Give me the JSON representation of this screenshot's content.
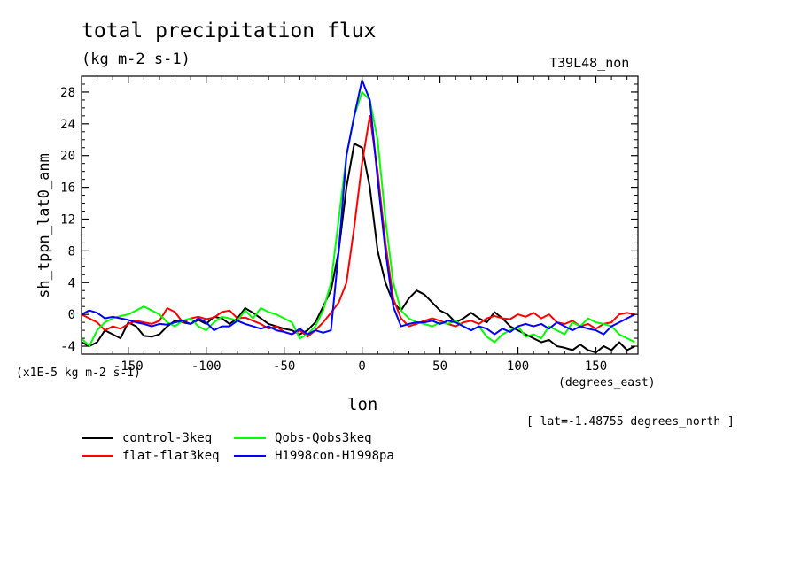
{
  "chart_data": {
    "type": "line",
    "title": "total precipitation flux",
    "subtitle": "(kg m-2 s-1)",
    "run_name": "T39L48_non",
    "xlabel": "lon",
    "x_units_label": "(degrees_east)",
    "ylabel": "sh_tppn_lat0_anm",
    "y_units_label": "(x1E-5 kg m-2 s-1)",
    "annotation": "[ lat=-1.48755 degrees_north ]",
    "xlim": [
      -180,
      177
    ],
    "ylim": [
      -5,
      30
    ],
    "x_ticks": [
      -150,
      -100,
      -50,
      0,
      50,
      100,
      150
    ],
    "x_tick_labels": [
      "-150",
      "-100",
      "-50",
      "0",
      "50",
      "100",
      "150"
    ],
    "y_ticks": [
      -4,
      0,
      4,
      8,
      12,
      16,
      20,
      24,
      28
    ],
    "y_tick_labels": [
      "-4",
      "0",
      "4",
      "8",
      "12",
      "16",
      "20",
      "24",
      "28"
    ],
    "grid": false,
    "legend_position": "bottom-left",
    "x": [
      -180,
      -175,
      -170,
      -165,
      -160,
      -155,
      -150,
      -145,
      -140,
      -135,
      -130,
      -125,
      -120,
      -115,
      -110,
      -105,
      -100,
      -95,
      -90,
      -85,
      -80,
      -75,
      -70,
      -65,
      -60,
      -55,
      -50,
      -45,
      -40,
      -35,
      -30,
      -25,
      -20,
      -15,
      -10,
      -5,
      0,
      5,
      10,
      15,
      20,
      25,
      30,
      35,
      40,
      45,
      50,
      55,
      60,
      65,
      70,
      75,
      80,
      85,
      90,
      95,
      100,
      105,
      110,
      115,
      120,
      125,
      130,
      135,
      140,
      145,
      150,
      155,
      160,
      165,
      170,
      175
    ],
    "series": [
      {
        "name": "control-3keq",
        "color": "#000000",
        "values": [
          -3.5,
          -4,
          -3.5,
          -2,
          -2.5,
          -3,
          -1,
          -1.5,
          -2.7,
          -2.8,
          -2.5,
          -1.5,
          -0.8,
          -1,
          -1.2,
          -0.7,
          -1.2,
          -0.3,
          -0.5,
          -1.2,
          -0.5,
          0.8,
          0.2,
          -0.5,
          -1.2,
          -1.5,
          -1.8,
          -2,
          -2.5,
          -2,
          -1,
          1,
          3,
          8,
          16,
          21.5,
          21,
          16,
          8,
          4,
          1.5,
          0.5,
          2,
          3,
          2.5,
          1.5,
          0.5,
          0,
          -1,
          -0.5,
          0.2,
          -0.5,
          -1,
          0.3,
          -0.5,
          -1.5,
          -2,
          -2.5,
          -3,
          -3.5,
          -3.2,
          -4,
          -4.2,
          -4.5,
          -3.8,
          -4.5,
          -4.8,
          -4,
          -4.5,
          -3.5,
          -4.5,
          -4
        ]
      },
      {
        "name": "flat-flat3keq",
        "color": "#ff0000",
        "values": [
          0,
          -0.5,
          -1,
          -2,
          -1.5,
          -1.8,
          -1.2,
          -0.8,
          -1,
          -1.2,
          -0.8,
          0.8,
          0.3,
          -1,
          -0.5,
          -0.3,
          -0.6,
          -0.4,
          0.3,
          0.5,
          -0.5,
          -0.4,
          -0.8,
          -1.2,
          -1.8,
          -1.5,
          -2.2,
          -2.5,
          -2,
          -2.8,
          -2,
          -1,
          0.2,
          1.5,
          4,
          11,
          19,
          25,
          18,
          9,
          2,
          -0.5,
          -1.5,
          -1.2,
          -0.8,
          -0.5,
          -0.8,
          -1.2,
          -1.5,
          -1,
          -0.8,
          -1.2,
          -0.5,
          -0.2,
          -0.5,
          -0.6,
          0,
          -0.3,
          0.2,
          -0.5,
          0,
          -1,
          -1.2,
          -0.8,
          -1.5,
          -1.2,
          -1.8,
          -1.2,
          -1,
          0,
          0.2,
          0
        ]
      },
      {
        "name": "Qobs-Qobs3keq",
        "color": "#00ff00",
        "values": [
          -3,
          -4,
          -2,
          -1,
          -0.5,
          -0.2,
          0,
          0.5,
          1,
          0.5,
          0,
          -1,
          -1.5,
          -0.8,
          -0.5,
          -1.5,
          -2,
          -1,
          -0.3,
          -0.5,
          -0.8,
          0.5,
          -0.5,
          0.8,
          0.3,
          0,
          -0.5,
          -1,
          -3,
          -2.5,
          -1.5,
          0.5,
          4,
          12,
          20,
          25,
          28,
          27,
          22,
          12,
          4,
          0.5,
          -0.5,
          -1,
          -1.2,
          -1.5,
          -1,
          -1.2,
          -0.8,
          -1.5,
          -2,
          -1.5,
          -2.8,
          -3.5,
          -2.5,
          -2,
          -1.5,
          -2.8,
          -2.5,
          -3,
          -1.5,
          -2,
          -2.5,
          -1,
          -1.5,
          -0.5,
          -1,
          -1.2,
          -1.5,
          -2.5,
          -3,
          -3.5
        ]
      },
      {
        "name": "H1998con-H1998pa",
        "color": "#0000ff",
        "values": [
          0,
          0.5,
          0.2,
          -0.5,
          -0.3,
          -0.5,
          -0.7,
          -1,
          -1.2,
          -1.5,
          -1.2,
          -1.3,
          -1,
          -0.8,
          -1.2,
          -0.5,
          -1,
          -2,
          -1.5,
          -1.5,
          -0.8,
          -1.2,
          -1.5,
          -1.8,
          -1.5,
          -2,
          -2.2,
          -2.5,
          -1.8,
          -2.5,
          -2,
          -2.3,
          -2,
          8,
          20,
          25,
          29.5,
          27,
          17,
          8,
          1,
          -1.5,
          -1.2,
          -1,
          -1,
          -0.8,
          -1.2,
          -0.8,
          -1,
          -1.5,
          -2,
          -1.5,
          -1.8,
          -2.5,
          -1.8,
          -2.2,
          -1.5,
          -1.2,
          -1.5,
          -1.2,
          -1.8,
          -1,
          -1.5,
          -2,
          -1.5,
          -1.8,
          -2,
          -2.5,
          -1.5,
          -1,
          -0.5,
          0
        ]
      }
    ]
  }
}
